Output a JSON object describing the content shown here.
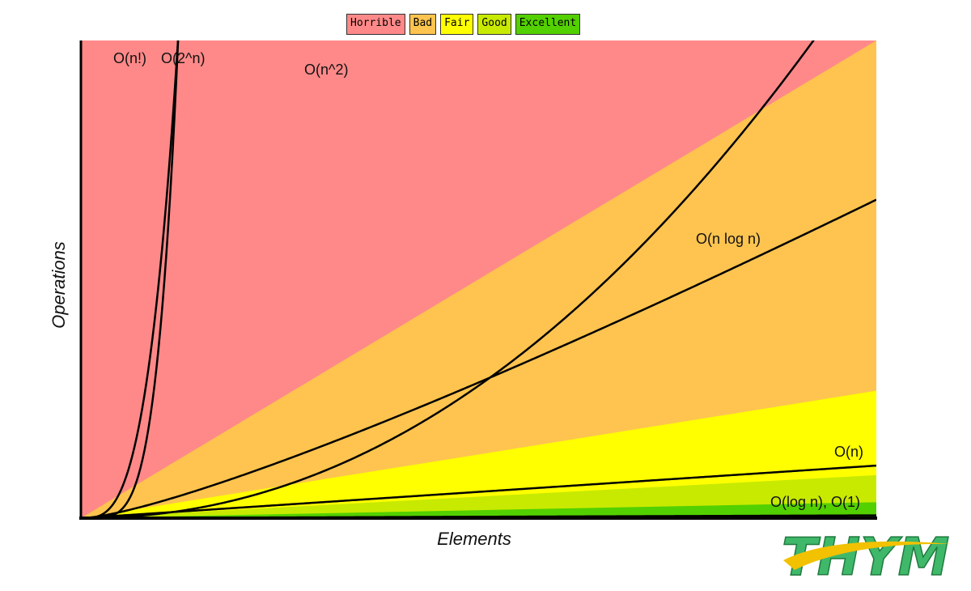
{
  "legend": [
    {
      "label": "Horrible",
      "color": "#ff8989"
    },
    {
      "label": "Bad",
      "color": "#fec44f"
    },
    {
      "label": "Fair",
      "color": "#ffff00"
    },
    {
      "label": "Good",
      "color": "#c8ea00"
    },
    {
      "label": "Excellent",
      "color": "#53d000"
    }
  ],
  "chart_data": {
    "type": "area",
    "title": "",
    "xlabel": "Elements",
    "ylabel": "Operations",
    "xlim": [
      0,
      100
    ],
    "ylim": [
      0,
      60
    ],
    "grid": false,
    "legend_placement": "top-center",
    "regions": [
      {
        "name": "Horrible",
        "color": "#ff8989",
        "boundary_slope": 1000000000.0
      },
      {
        "name": "Bad",
        "color": "#fec44f",
        "boundary_slope": 0.6
      },
      {
        "name": "Fair",
        "color": "#ffff00",
        "boundary_slope": 0.16
      },
      {
        "name": "Good",
        "color": "#c8ea00",
        "boundary_slope": 0.054
      },
      {
        "name": "Excellent",
        "color": "#53d000",
        "boundary_slope": 0.02
      }
    ],
    "series": [
      {
        "name": "O(n!)",
        "kind": "factorial"
      },
      {
        "name": "O(2^n)",
        "kind": "exp2"
      },
      {
        "name": "O(n^2)",
        "kind": "square"
      },
      {
        "name": "O(n log n)",
        "kind": "nlogn"
      },
      {
        "name": "O(n)",
        "kind": "linear"
      },
      {
        "name": "O(log n), O(1)",
        "kind": "log"
      }
    ]
  },
  "logo": {
    "text": "THYM",
    "color": "#3fb86a",
    "swoosh_color": "#f2c100"
  }
}
